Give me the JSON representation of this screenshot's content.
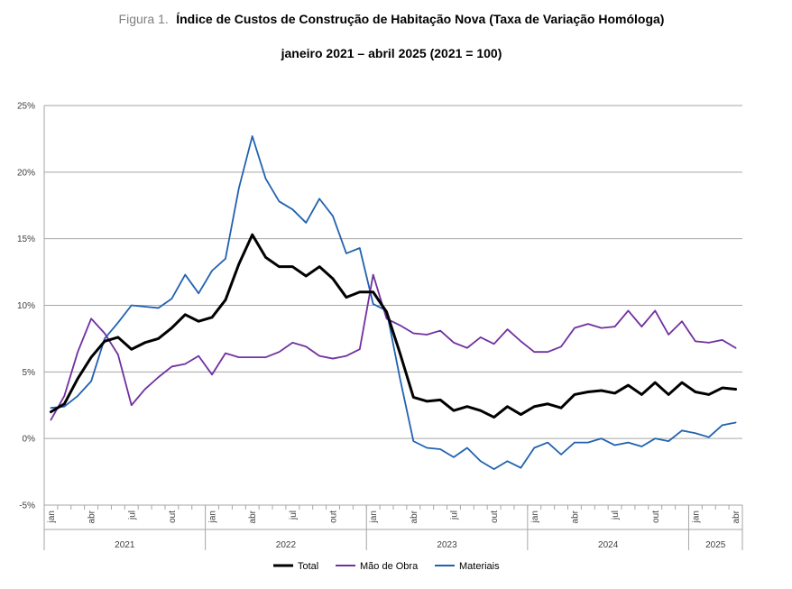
{
  "chart_data": {
    "type": "line",
    "title_prefix": "Figura 1.",
    "title": "Índice de Custos de Construção de Habitação Nova (Taxa de Variação Homóloga)",
    "subtitle": "janeiro 2021 – abril 2025 (2021 = 100)",
    "ylim": [
      -5,
      25
    ],
    "yticks": [
      -5,
      0,
      5,
      10,
      15,
      20,
      25
    ],
    "ytick_labels": [
      "-5%",
      "0%",
      "5%",
      "10%",
      "15%",
      "20%",
      "25%"
    ],
    "month_tick_labels": [
      "jan",
      "abr",
      "jul",
      "out"
    ],
    "years": [
      {
        "label": "2021",
        "months": 12
      },
      {
        "label": "2022",
        "months": 12
      },
      {
        "label": "2023",
        "months": 12
      },
      {
        "label": "2024",
        "months": 12
      },
      {
        "label": "2025",
        "months": 4
      }
    ],
    "series": [
      {
        "name": "Total",
        "color": "#000000",
        "values": [
          2.0,
          2.6,
          4.5,
          6.1,
          7.3,
          7.6,
          6.7,
          7.2,
          7.5,
          8.3,
          9.3,
          8.8,
          9.1,
          10.4,
          13.1,
          15.3,
          13.6,
          12.9,
          12.9,
          12.2,
          12.9,
          12.0,
          10.6,
          11.0,
          11.0,
          9.5,
          6.4,
          3.1,
          2.8,
          2.9,
          2.1,
          2.4,
          2.1,
          1.6,
          2.4,
          1.8,
          2.4,
          2.6,
          2.3,
          3.3,
          3.5,
          3.6,
          3.4,
          4.0,
          3.3,
          4.2,
          3.3,
          4.2,
          3.5,
          3.3,
          3.8,
          3.7
        ]
      },
      {
        "name": "Mão de Obra",
        "color": "#7030a0",
        "values": [
          1.4,
          3.2,
          6.5,
          9.0,
          7.9,
          6.3,
          2.5,
          3.7,
          4.6,
          5.4,
          5.6,
          6.2,
          4.8,
          6.4,
          6.1,
          6.1,
          6.1,
          6.5,
          7.2,
          6.9,
          6.2,
          6.0,
          6.2,
          6.7,
          12.3,
          9.0,
          8.5,
          7.9,
          7.8,
          8.1,
          7.2,
          6.8,
          7.6,
          7.1,
          8.2,
          7.3,
          6.5,
          6.5,
          6.9,
          8.3,
          8.6,
          8.3,
          8.4,
          9.6,
          8.4,
          9.6,
          7.8,
          8.8,
          7.3,
          7.2,
          7.4,
          6.8
        ]
      },
      {
        "name": "Materiais",
        "color": "#2162b0",
        "values": [
          2.3,
          2.4,
          3.2,
          4.3,
          7.5,
          8.7,
          10.0,
          9.9,
          9.8,
          10.5,
          12.3,
          10.9,
          12.6,
          13.5,
          18.8,
          22.7,
          19.5,
          17.8,
          17.2,
          16.2,
          18.0,
          16.7,
          13.9,
          14.3,
          10.1,
          9.6,
          4.5,
          -0.2,
          -0.7,
          -0.8,
          -1.4,
          -0.7,
          -1.7,
          -2.3,
          -1.7,
          -2.2,
          -0.7,
          -0.3,
          -1.2,
          -0.3,
          -0.3,
          0.0,
          -0.5,
          -0.3,
          -0.6,
          0.0,
          -0.2,
          0.6,
          0.4,
          0.1,
          1.0,
          1.2
        ]
      }
    ],
    "legend_position": "bottom-center",
    "grid": true
  }
}
